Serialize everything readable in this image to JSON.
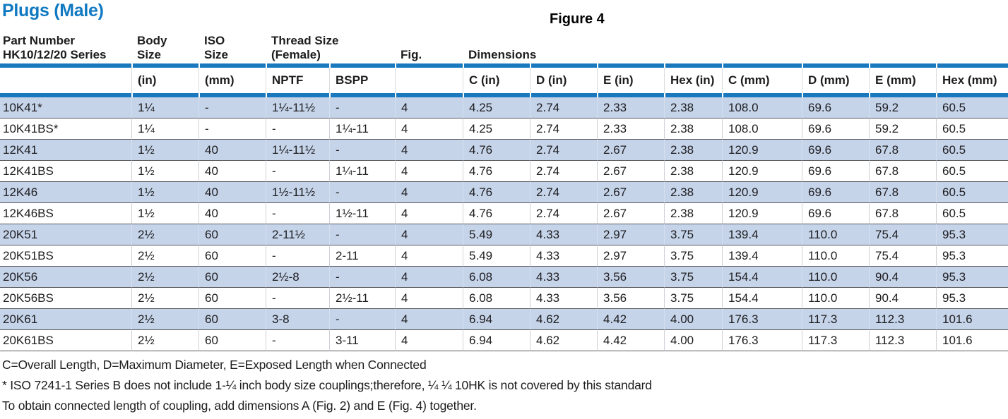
{
  "page": {
    "title": "Plugs (Male)",
    "figure_label": "Figure 4"
  },
  "colors": {
    "title_blue": "#1079c2",
    "accent_bar_blue": "#1a78be",
    "shaded_row_blue": "#c6d4ea",
    "row_separator_gray": "#595a5e"
  },
  "table": {
    "group_headers": [
      {
        "text": "Part Number\nHK10/12/20 Series",
        "span": 1
      },
      {
        "text": "Body\nSize",
        "span": 1
      },
      {
        "text": "ISO\nSize",
        "span": 1
      },
      {
        "text": "Thread Size\n(Female)",
        "span": 2
      },
      {
        "text": "Fig.",
        "span": 1
      },
      {
        "text": "Dimensions",
        "span": 8
      }
    ],
    "sub_headers": [
      "",
      "(in)",
      "(mm)",
      "NPTF",
      "BSPP",
      "",
      "C (in)",
      "D (in)",
      "E (in)",
      "Hex (in)",
      "C (mm)",
      "D (mm)",
      "E (mm)",
      "Hex (mm)"
    ],
    "rows": [
      [
        "10K41*",
        "1¼",
        "-",
        "1¼-11½",
        "-",
        "4",
        "4.25",
        "2.74",
        "2.33",
        "2.38",
        "108.0",
        "69.6",
        "59.2",
        "60.5"
      ],
      [
        "10K41BS*",
        "1¼",
        "-",
        "-",
        "1¼-11",
        "4",
        "4.25",
        "2.74",
        "2.33",
        "2.38",
        "108.0",
        "69.6",
        "59.2",
        "60.5"
      ],
      [
        "12K41",
        "1½",
        "40",
        "1¼-11½",
        "-",
        "4",
        "4.76",
        "2.74",
        "2.67",
        "2.38",
        "120.9",
        "69.6",
        "67.8",
        "60.5"
      ],
      [
        "12K41BS",
        "1½",
        "40",
        "-",
        "1¼-11",
        "4",
        "4.76",
        "2.74",
        "2.67",
        "2.38",
        "120.9",
        "69.6",
        "67.8",
        "60.5"
      ],
      [
        "12K46",
        "1½",
        "40",
        "1½-11½",
        "-",
        "4",
        "4.76",
        "2.74",
        "2.67",
        "2.38",
        "120.9",
        "69.6",
        "67.8",
        "60.5"
      ],
      [
        "12K46BS",
        "1½",
        "40",
        "-",
        "1½-11",
        "4",
        "4.76",
        "2.74",
        "2.67",
        "2.38",
        "120.9",
        "69.6",
        "67.8",
        "60.5"
      ],
      [
        "20K51",
        "2½",
        "60",
        "2-11½",
        "-",
        "4",
        "5.49",
        "4.33",
        "2.97",
        "3.75",
        "139.4",
        "110.0",
        "75.4",
        "95.3"
      ],
      [
        "20K51BS",
        "2½",
        "60",
        "-",
        "2-11",
        "4",
        "5.49",
        "4.33",
        "2.97",
        "3.75",
        "139.4",
        "110.0",
        "75.4",
        "95.3"
      ],
      [
        "20K56",
        "2½",
        "60",
        "2½-8",
        "-",
        "4",
        "6.08",
        "4.33",
        "3.56",
        "3.75",
        "154.4",
        "110.0",
        "90.4",
        "95.3"
      ],
      [
        "20K56BS",
        "2½",
        "60",
        "-",
        "2½-11",
        "4",
        "6.08",
        "4.33",
        "3.56",
        "3.75",
        "154.4",
        "110.0",
        "90.4",
        "95.3"
      ],
      [
        "20K61",
        "2½",
        "60",
        "3-8",
        "-",
        "4",
        "6.94",
        "4.62",
        "4.42",
        "4.00",
        "176.3",
        "117.3",
        "112.3",
        "101.6"
      ],
      [
        "20K61BS",
        "2½",
        "60",
        "-",
        "3-11",
        "4",
        "6.94",
        "4.62",
        "4.42",
        "4.00",
        "176.3",
        "117.3",
        "112.3",
        "101.6"
      ]
    ]
  },
  "footnotes": [
    "C=Overall Length, D=Maximum Diameter, E=Exposed Length when Connected",
    "* ISO 7241-1 Series B does not include 1-¼ inch body size couplings;therefore, ¼ ¼ 10HK is not covered by this standard",
    "To obtain connected length of coupling, add dimensions A (Fig. 2) and E (Fig. 4) together."
  ]
}
